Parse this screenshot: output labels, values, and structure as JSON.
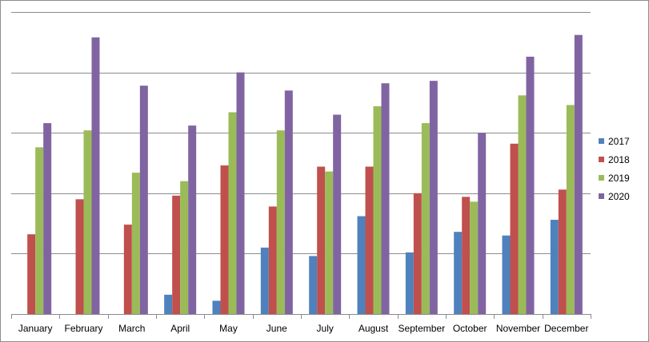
{
  "chart_data": {
    "type": "bar",
    "title": "",
    "xlabel": "",
    "ylabel": "",
    "ylim": [
      0,
      25
    ],
    "grid": true,
    "legend_position": "right",
    "categories": [
      "January",
      "February",
      "March",
      "April",
      "May",
      "June",
      "July",
      "August",
      "September",
      "October",
      "November",
      "December"
    ],
    "series": [
      {
        "name": "2017",
        "color": "#4f81bd",
        "values": [
          0,
          0,
          0,
          1.6,
          1.1,
          5.5,
          4.8,
          8.1,
          5.1,
          6.8,
          6.5,
          7.8
        ]
      },
      {
        "name": "2018",
        "color": "#c0504d",
        "values": [
          6.6,
          9.5,
          7.4,
          9.8,
          12.3,
          8.9,
          12.2,
          12.2,
          10.0,
          9.7,
          14.1,
          10.3
        ]
      },
      {
        "name": "2019",
        "color": "#9bbb59",
        "values": [
          13.8,
          15.2,
          11.7,
          11.0,
          16.7,
          15.2,
          11.8,
          17.2,
          15.8,
          9.3,
          18.1,
          17.3
        ]
      },
      {
        "name": "2020",
        "color": "#8064a2",
        "values": [
          15.8,
          22.9,
          18.9,
          15.6,
          20.0,
          18.5,
          16.5,
          19.1,
          19.3,
          15.0,
          21.3,
          23.1
        ]
      }
    ]
  }
}
